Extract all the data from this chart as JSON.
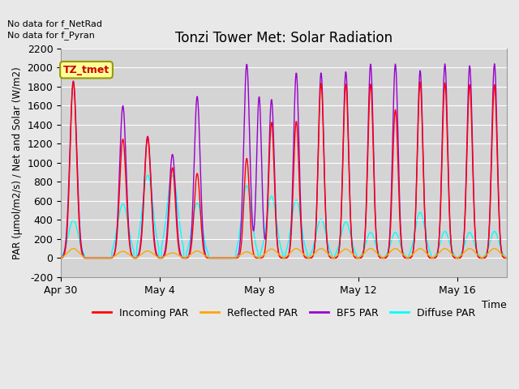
{
  "title": "Tonzi Tower Met: Solar Radiation",
  "xlabel": "Time",
  "ylabel": "PAR (μmol/m2/s) / Net and Solar (W/m2)",
  "ylim": [
    -200,
    2200
  ],
  "yticks": [
    -200,
    0,
    200,
    400,
    600,
    800,
    1000,
    1200,
    1400,
    1600,
    1800,
    2000,
    2200
  ],
  "no_data_text1": "No data for f_NetRad",
  "no_data_text2": "No data for f_Pyran",
  "legend_label_text": "TZ_tmet",
  "background_color": "#e8e8e8",
  "plot_bg_color": "#d4d4d4",
  "colors": {
    "incoming": "#ff0000",
    "reflected": "#ffa500",
    "bfs": "#9900cc",
    "diffuse": "#00ffff"
  },
  "legend_entries": [
    "Incoming PAR",
    "Reflected PAR",
    "BF5 PAR",
    "Diffuse PAR"
  ],
  "x_tick_labels": [
    "Apr 30",
    "May 4",
    "May 8",
    "May 12",
    "May 16"
  ],
  "x_tick_positions": [
    0,
    4,
    8,
    12,
    16
  ],
  "num_days": 18,
  "figsize": [
    6.4,
    4.8
  ],
  "dpi": 100
}
